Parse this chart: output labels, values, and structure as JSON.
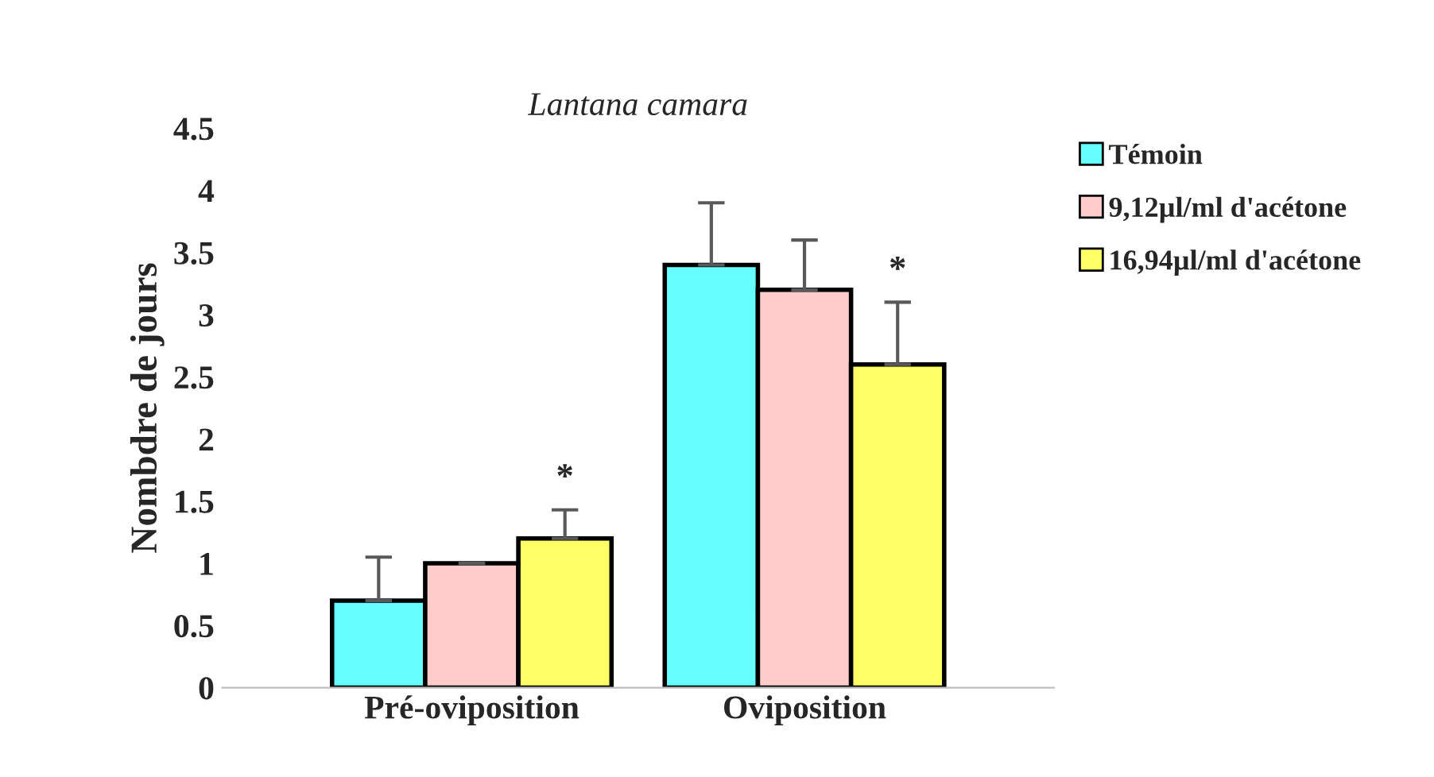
{
  "chart_data": {
    "type": "bar",
    "title": "Lantana camara",
    "ylabel": "Nombdre de jours",
    "categories": [
      "Pré-oviposition",
      "Oviposition"
    ],
    "series": [
      {
        "name": "Témoin",
        "color": "#66ffff",
        "values": [
          0.7,
          3.4
        ],
        "errors": [
          [
            0.7,
            1.05
          ],
          [
            3.4,
            3.9
          ]
        ]
      },
      {
        "name": "9,12µl/ml d'acétone",
        "color": "#ffcccc",
        "values": [
          1.0,
          3.2
        ],
        "errors": [
          [
            1.0,
            1.0
          ],
          [
            3.2,
            3.6
          ]
        ]
      },
      {
        "name": "16,94µl/ml d'acétone",
        "color": "#ffff66",
        "values": [
          1.2,
          2.6
        ],
        "errors": [
          [
            1.2,
            1.43
          ],
          [
            2.6,
            3.1
          ]
        ]
      }
    ],
    "ylim": [
      0,
      4.5
    ],
    "yticks": [
      0,
      0.5,
      1,
      1.5,
      2,
      2.5,
      3,
      3.5,
      4,
      4.5
    ],
    "grid": false,
    "legend": "right",
    "annotations": [
      "*",
      "*"
    ]
  }
}
